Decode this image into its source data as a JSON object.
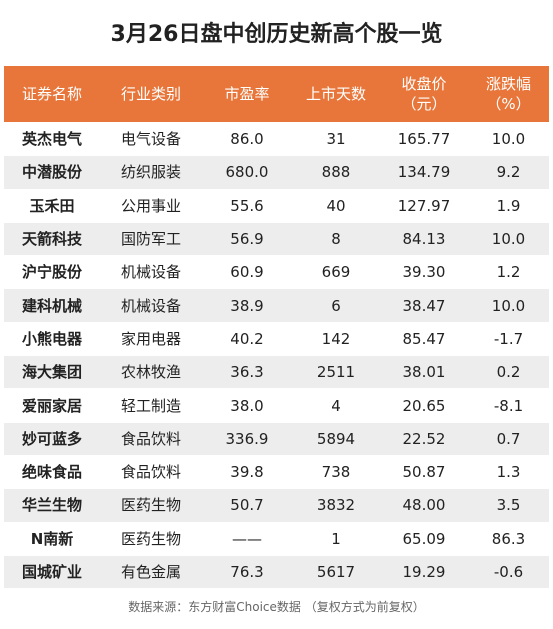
{
  "title": "3月26日盘中创历史新高个股一览",
  "table": {
    "header": [
      [
        "证券名称"
      ],
      [
        "行业类别"
      ],
      [
        "市盈率"
      ],
      [
        "上市天数"
      ],
      [
        "收盘价",
        "（元）"
      ],
      [
        "涨跌幅",
        "（%）"
      ]
    ],
    "rows": [
      [
        "英杰电气",
        "电气设备",
        "86.0",
        "31",
        "165.77",
        "10.0"
      ],
      [
        "中潜股份",
        "纺织服装",
        "680.0",
        "888",
        "134.79",
        "9.2"
      ],
      [
        "玉禾田",
        "公用事业",
        "55.6",
        "40",
        "127.97",
        "1.9"
      ],
      [
        "天箭科技",
        "国防军工",
        "56.9",
        "8",
        "84.13",
        "10.0"
      ],
      [
        "沪宁股份",
        "机械设备",
        "60.9",
        "669",
        "39.30",
        "1.2"
      ],
      [
        "建科机械",
        "机械设备",
        "38.9",
        "6",
        "38.47",
        "10.0"
      ],
      [
        "小熊电器",
        "家用电器",
        "40.2",
        "142",
        "85.47",
        "-1.7"
      ],
      [
        "海大集团",
        "农林牧渔",
        "36.3",
        "2511",
        "38.01",
        "0.2"
      ],
      [
        "爱丽家居",
        "轻工制造",
        "38.0",
        "4",
        "20.65",
        "-8.1"
      ],
      [
        "妙可蓝多",
        "食品饮料",
        "336.9",
        "5894",
        "22.52",
        "0.7"
      ],
      [
        "绝味食品",
        "食品饮料",
        "39.8",
        "738",
        "50.87",
        "1.3"
      ],
      [
        "华兰生物",
        "医药生物",
        "50.7",
        "3832",
        "48.00",
        "3.5"
      ],
      [
        "N南新",
        "医药生物",
        "——",
        "1",
        "65.09",
        "86.3"
      ],
      [
        "国城矿业",
        "有色金属",
        "76.3",
        "5617",
        "19.29",
        "-0.6"
      ]
    ]
  },
  "footer": "数据来源：东方财富Choice数据 （复权方式为前复权）"
}
